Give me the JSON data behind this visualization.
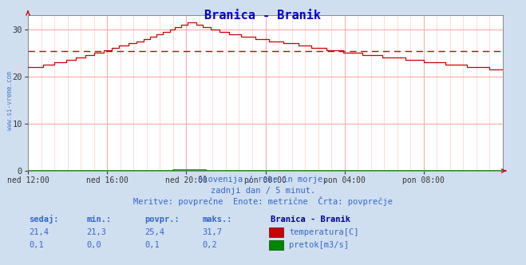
{
  "title": "Branica - Branik",
  "title_color": "#0000cc",
  "bg_color": "#d0dff0",
  "plot_bg_color": "#ffffff",
  "grid_color": "#ffaaaa",
  "grid_color_minor": "#ffcccc",
  "watermark": "www.si-vreme.com",
  "x_labels": [
    "ned 12:00",
    "ned 16:00",
    "ned 20:00",
    "pon 00:00",
    "pon 04:00",
    "pon 08:00"
  ],
  "x_ticks_major": [
    0,
    48,
    96,
    144,
    192,
    240
  ],
  "x_ticks_minor": [
    8,
    16,
    24,
    32,
    40,
    56,
    64,
    72,
    80,
    88,
    104,
    112,
    120,
    128,
    136,
    152,
    160,
    168,
    176,
    184,
    200,
    208,
    216,
    224,
    232,
    248,
    256,
    264,
    272,
    280
  ],
  "total_points": 289,
  "ylim": [
    0,
    33
  ],
  "yticks": [
    0,
    10,
    20,
    30
  ],
  "avg_line": 25.4,
  "avg_line_color": "#cc0000",
  "temp_color": "#cc0000",
  "flow_color": "#008800",
  "arrow_color": "#cc0000",
  "subtitle1": "Slovenija / reke in morje.",
  "subtitle2": "zadnji dan / 5 minut.",
  "subtitle3": "Meritve: povprečne  Enote: metrične  Črta: povprečje",
  "subtitle_color": "#3366cc",
  "legend_title": "Branica - Branik",
  "legend_title_color": "#000099",
  "col_headers": [
    "sedaj:",
    "min.:",
    "povpr.:",
    "maks.:"
  ],
  "row1_vals": [
    "21,4",
    "21,3",
    "25,4",
    "31,7"
  ],
  "row2_vals": [
    "0,1",
    "0,0",
    "0,1",
    "0,2"
  ],
  "label_temp": "temperatura[C]",
  "label_flow": "pretok[m3/s]",
  "table_color": "#3366cc",
  "table_val_color": "#3366cc"
}
